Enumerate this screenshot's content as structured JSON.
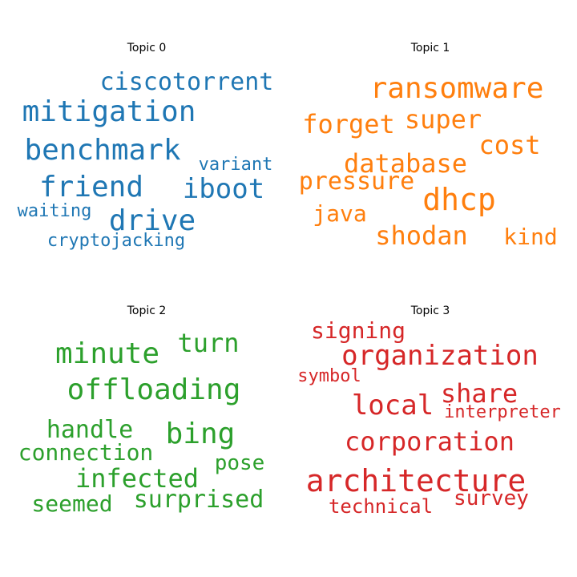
{
  "chart_data": {
    "type": "wordcloud",
    "panels": [
      {
        "title": "Topic 0",
        "color": "#1f77b4",
        "words": [
          "ciscotorrent",
          "mitigation",
          "benchmark",
          "variant",
          "friend",
          "iboot",
          "waiting",
          "drive",
          "cryptojacking"
        ]
      },
      {
        "title": "Topic 1",
        "color": "#ff7f0e",
        "words": [
          "ransomware",
          "forget",
          "super",
          "cost",
          "database",
          "pressure",
          "dhcp",
          "java",
          "shodan",
          "kind"
        ]
      },
      {
        "title": "Topic 2",
        "color": "#2ca02c",
        "words": [
          "turn",
          "minute",
          "offloading",
          "handle",
          "bing",
          "connection",
          "pose",
          "infected",
          "seemed",
          "surprised"
        ]
      },
      {
        "title": "Topic 3",
        "color": "#d62728",
        "words": [
          "signing",
          "organization",
          "symbol",
          "share",
          "local",
          "interpreter",
          "corporation",
          "architecture",
          "survey",
          "technical"
        ]
      }
    ]
  }
}
